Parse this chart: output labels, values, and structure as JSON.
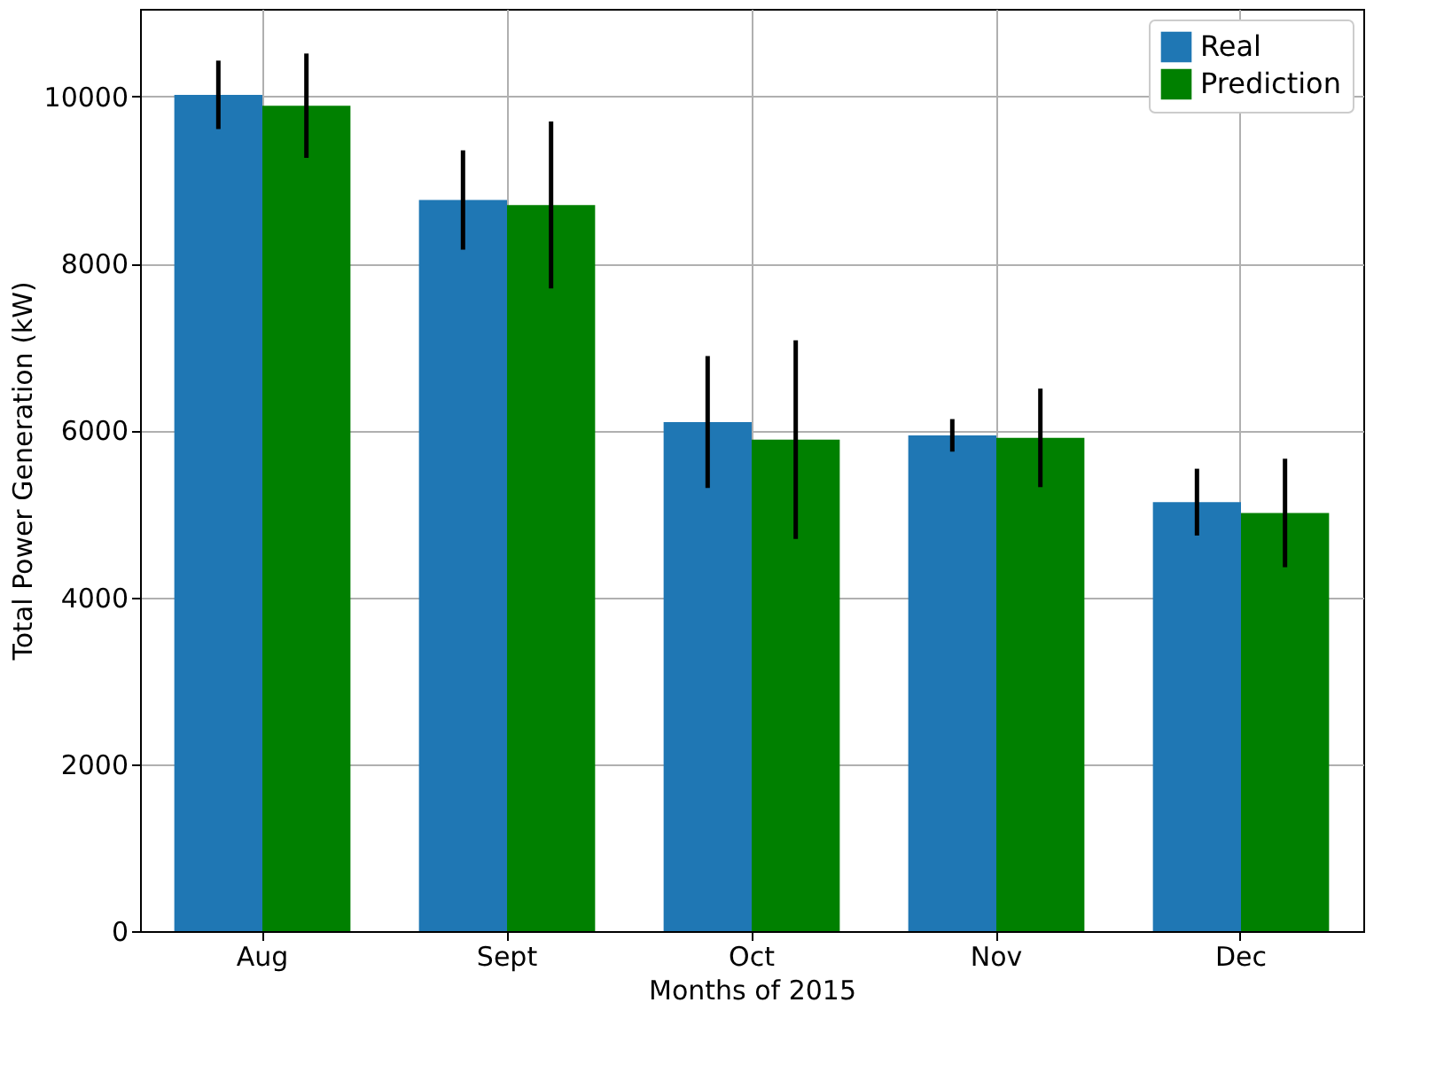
{
  "chart_data": {
    "type": "bar",
    "xlabel": "Months of 2015",
    "ylabel": "Total Power Generation (kW)",
    "categories": [
      "Aug",
      "Sept",
      "Oct",
      "Nov",
      "Dec"
    ],
    "series": [
      {
        "name": "Real",
        "color": "#1f77b4",
        "values": [
          10020,
          8760,
          6100,
          5940,
          5140
        ],
        "errors": [
          410,
          595,
          790,
          195,
          400
        ]
      },
      {
        "name": "Prediction",
        "color": "#008000",
        "values": [
          9890,
          8700,
          5890,
          5910,
          5010
        ],
        "errors": [
          625,
          1000,
          1190,
          590,
          650
        ]
      }
    ],
    "ylim": [
      0,
      11050
    ],
    "yticks": [
      0,
      2000,
      4000,
      6000,
      8000,
      10000
    ],
    "grid": true,
    "legend": "top right"
  }
}
